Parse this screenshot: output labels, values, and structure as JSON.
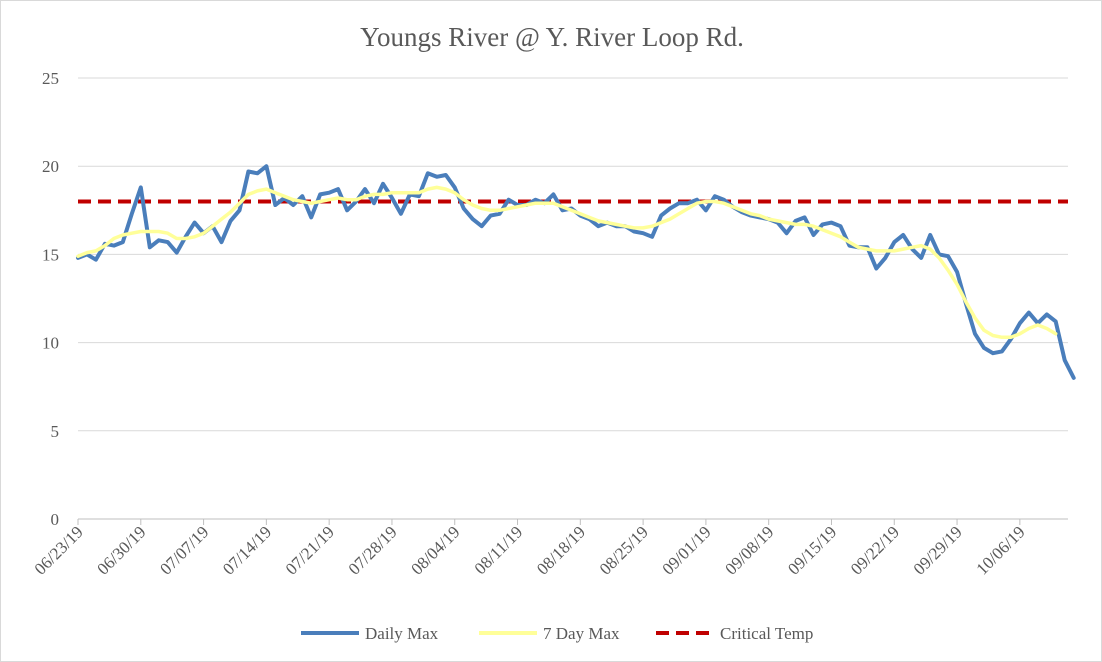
{
  "chart_data": {
    "type": "line",
    "title": "Youngs River @ Y. River Loop Rd.",
    "xlabel": "",
    "ylabel": "",
    "ylim": [
      0,
      25
    ],
    "yticks": [
      0,
      5,
      10,
      15,
      20,
      25
    ],
    "grid": true,
    "legend_position": "bottom",
    "start_date": "2019-06-23",
    "x_tick_labels": [
      "06/23/19",
      "06/30/19",
      "07/07/19",
      "07/14/19",
      "07/21/19",
      "07/28/19",
      "08/04/19",
      "08/11/19",
      "08/18/19",
      "08/25/19",
      "09/01/19",
      "09/08/19",
      "09/15/19",
      "09/22/19",
      "09/29/19",
      "10/06/19"
    ],
    "series": [
      {
        "name": "Daily Max",
        "color": "#4a7ebb",
        "style": "solid",
        "values": [
          14.8,
          15.0,
          14.7,
          15.6,
          15.5,
          15.7,
          17.3,
          18.8,
          15.4,
          15.8,
          15.7,
          15.1,
          16.0,
          16.8,
          16.2,
          16.6,
          15.7,
          16.9,
          17.5,
          19.7,
          19.6,
          20.0,
          17.8,
          18.2,
          17.8,
          18.3,
          17.1,
          18.4,
          18.5,
          18.7,
          17.5,
          18.0,
          18.7,
          17.9,
          19.0,
          18.2,
          17.3,
          18.4,
          18.3,
          19.6,
          19.4,
          19.5,
          18.8,
          17.6,
          17.0,
          16.6,
          17.2,
          17.3,
          18.1,
          17.8,
          17.8,
          18.1,
          17.9,
          18.4,
          17.5,
          17.6,
          17.2,
          17.0,
          16.6,
          16.8,
          16.6,
          16.6,
          16.3,
          16.2,
          16.0,
          17.2,
          17.6,
          17.9,
          17.9,
          18.1,
          17.5,
          18.3,
          18.1,
          17.7,
          17.4,
          17.2,
          17.1,
          17.0,
          16.8,
          16.2,
          16.9,
          17.1,
          16.1,
          16.7,
          16.8,
          16.6,
          15.5,
          15.4,
          15.4,
          14.2,
          14.8,
          15.7,
          16.1,
          15.3,
          14.8,
          16.1,
          15.0,
          14.9,
          14.0,
          12.2,
          10.5,
          9.7,
          9.4,
          9.5,
          10.2,
          11.1,
          11.7,
          11.1,
          11.6,
          11.2,
          9.0,
          8.0
        ]
      },
      {
        "name": "7 Day Max",
        "color": "#ffff99",
        "style": "solid",
        "values": [
          14.9,
          15.1,
          15.2,
          15.5,
          15.9,
          16.1,
          16.2,
          16.3,
          16.3,
          16.3,
          16.2,
          15.9,
          15.9,
          16.0,
          16.2,
          16.6,
          17.0,
          17.4,
          17.9,
          18.4,
          18.6,
          18.7,
          18.5,
          18.3,
          18.1,
          18.0,
          17.9,
          18.0,
          18.1,
          18.2,
          18.1,
          18.1,
          18.3,
          18.4,
          18.4,
          18.5,
          18.5,
          18.5,
          18.5,
          18.7,
          18.8,
          18.7,
          18.5,
          18.1,
          17.8,
          17.6,
          17.5,
          17.5,
          17.6,
          17.7,
          17.8,
          17.9,
          17.9,
          17.9,
          17.7,
          17.5,
          17.3,
          17.1,
          16.9,
          16.8,
          16.7,
          16.6,
          16.5,
          16.5,
          16.6,
          16.8,
          17.0,
          17.3,
          17.6,
          17.9,
          18.0,
          18.0,
          17.9,
          17.7,
          17.5,
          17.3,
          17.2,
          17.0,
          16.9,
          16.8,
          16.7,
          16.7,
          16.6,
          16.4,
          16.2,
          16.0,
          15.7,
          15.4,
          15.3,
          15.2,
          15.2,
          15.2,
          15.3,
          15.4,
          15.5,
          15.3,
          14.8,
          14.1,
          13.3,
          12.3,
          11.4,
          10.7,
          10.4,
          10.3,
          10.3,
          10.5,
          10.8,
          11.0,
          10.8,
          10.5
        ]
      },
      {
        "name": "Critical Temp",
        "color": "#c00000",
        "style": "dashed",
        "constant": 18
      }
    ]
  }
}
